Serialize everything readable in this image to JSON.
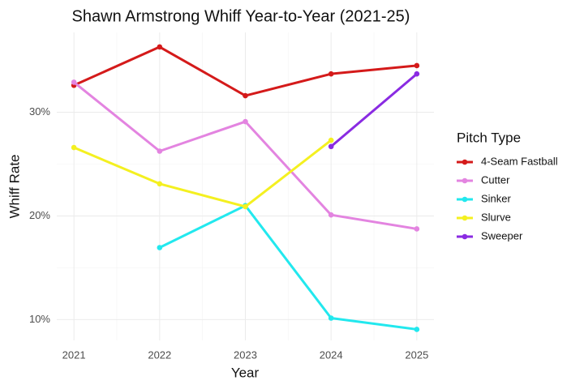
{
  "chart_data": {
    "type": "line",
    "title": "Shawn Armstrong Whiff Year-to-Year (2021-25)",
    "x_label": "Year",
    "y_label": "Whiff Rate",
    "legend_title": "Pitch Type",
    "legend_position": "right",
    "grid": true,
    "x": [
      2021,
      2022,
      2023,
      2024,
      2025
    ],
    "xlim": [
      2020.8,
      2025.2
    ],
    "xticks": [
      2021,
      2022,
      2023,
      2024,
      2025
    ],
    "ylim": [
      8,
      37.7
    ],
    "yticks": [
      {
        "value": 10,
        "label": "10%"
      },
      {
        "value": 20,
        "label": "20%"
      },
      {
        "value": 30,
        "label": "30%"
      }
    ],
    "series": [
      {
        "name": "4-Seam Fastball",
        "color": "#d41a1a",
        "values": [
          32.6,
          36.3,
          31.6,
          33.7,
          34.5
        ]
      },
      {
        "name": "Cutter",
        "color": "#e384e0",
        "values": [
          32.9,
          26.25,
          29.1,
          20.1,
          18.75
        ]
      },
      {
        "name": "Sinker",
        "color": "#22e8ee",
        "values": [
          null,
          16.95,
          21.0,
          10.15,
          9.06
        ]
      },
      {
        "name": "Slurve",
        "color": "#f4f020",
        "values": [
          26.6,
          23.1,
          20.9,
          27.3,
          null
        ]
      },
      {
        "name": "Sweeper",
        "color": "#8a2be2",
        "values": [
          null,
          null,
          null,
          26.7,
          33.7
        ]
      }
    ]
  }
}
